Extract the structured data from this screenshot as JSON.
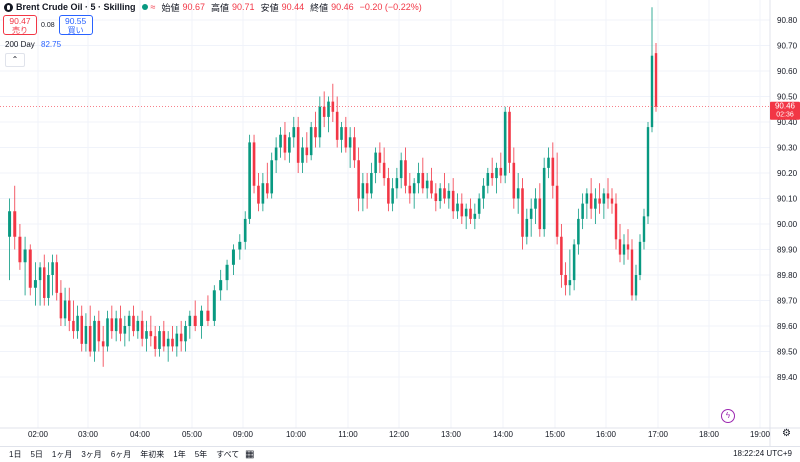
{
  "header": {
    "symbol": "Brent Crude Oil · 5 · Skilling",
    "pulse_icon": "≈",
    "open_label": "始値",
    "open_value": "90.67",
    "high_label": "高値",
    "high_value": "90.71",
    "low_label": "安値",
    "low_value": "90.44",
    "close_label": "終値",
    "close_value": "90.46",
    "change": "−0.20 (−0.22%)"
  },
  "trade": {
    "sell_price": "90.47",
    "sell_label": "売り",
    "spread": "0.08",
    "buy_price": "90.55",
    "buy_label": "買い"
  },
  "indicator": {
    "name": "200 Day",
    "value": "82.75"
  },
  "colors": {
    "up": "#089981",
    "down": "#f23645",
    "price_tag": "#f23645",
    "grid": "#f0f3fa"
  },
  "price_tag": {
    "price": "90.46",
    "countdown": "02:36"
  },
  "bottom": {
    "periods": [
      "1日",
      "5日",
      "1ヶ月",
      "3ヶ月",
      "6ヶ月",
      "年初来",
      "1年",
      "5年",
      "すべて"
    ],
    "clock": "18:22:24 UTC+9"
  },
  "chart_data": {
    "type": "candlestick",
    "y_ticks": [
      "90.80",
      "90.70",
      "90.60",
      "90.50",
      "90.40",
      "90.30",
      "90.20",
      "90.10",
      "90.00",
      "89.90",
      "89.80",
      "89.70",
      "89.60",
      "89.50",
      "89.40"
    ],
    "x_ticks": [
      "02:00",
      "03:00",
      "04:00",
      "05:00",
      "09:00",
      "10:00",
      "11:00",
      "12:00",
      "13:00",
      "14:00",
      "15:00",
      "16:00",
      "17:00",
      "18:00",
      "19:00"
    ],
    "ylim": [
      89.36,
      90.92
    ],
    "last_price": 90.46,
    "segments": [
      {
        "x_range": [
          "01:30",
          "02:00"
        ],
        "ohlc": [
          [
            89.95,
            90.1,
            89.78,
            90.05
          ],
          [
            90.05,
            90.15,
            89.9,
            89.95
          ],
          [
            89.95,
            90.0,
            89.82,
            89.85
          ],
          [
            89.85,
            89.95,
            89.72,
            89.9
          ],
          [
            89.9,
            89.92,
            89.72,
            89.75
          ],
          [
            89.75,
            89.85,
            89.68,
            89.78
          ]
        ]
      },
      {
        "x_range": [
          "02:00",
          "03:00"
        ],
        "ohlc": [
          [
            89.78,
            89.85,
            89.68,
            89.83
          ],
          [
            89.83,
            89.88,
            89.68,
            89.71
          ],
          [
            89.71,
            89.85,
            89.68,
            89.8
          ],
          [
            89.8,
            89.88,
            89.72,
            89.85
          ],
          [
            89.85,
            89.88,
            89.7,
            89.73
          ],
          [
            89.73,
            89.78,
            89.6,
            89.63
          ],
          [
            89.63,
            89.75,
            89.6,
            89.7
          ],
          [
            89.7,
            89.75,
            89.58,
            89.62
          ],
          [
            89.62,
            89.7,
            89.55,
            89.58
          ],
          [
            89.58,
            89.68,
            89.55,
            89.64
          ],
          [
            89.64,
            89.68,
            89.5,
            89.53
          ],
          [
            89.53,
            89.65,
            89.5,
            89.6
          ]
        ]
      },
      {
        "x_range": [
          "03:00",
          "04:00"
        ],
        "ohlc": [
          [
            89.6,
            89.68,
            89.48,
            89.5
          ],
          [
            89.5,
            89.64,
            89.46,
            89.62
          ],
          [
            89.62,
            89.66,
            89.5,
            89.54
          ],
          [
            89.54,
            89.6,
            89.44,
            89.52
          ],
          [
            89.52,
            89.66,
            89.5,
            89.63
          ],
          [
            89.63,
            89.68,
            89.55,
            89.58
          ],
          [
            89.58,
            89.66,
            89.54,
            89.63
          ],
          [
            89.63,
            89.68,
            89.54,
            89.57
          ],
          [
            89.57,
            89.64,
            89.52,
            89.6
          ],
          [
            89.6,
            89.66,
            89.54,
            89.64
          ],
          [
            89.64,
            89.68,
            89.56,
            89.58
          ],
          [
            89.58,
            89.64,
            89.55,
            89.62
          ]
        ]
      },
      {
        "x_range": [
          "04:00",
          "05:00"
        ],
        "ohlc": [
          [
            89.62,
            89.66,
            89.52,
            89.55
          ],
          [
            89.55,
            89.62,
            89.5,
            89.58
          ],
          [
            89.58,
            89.64,
            89.52,
            89.56
          ],
          [
            89.56,
            89.6,
            89.48,
            89.51
          ],
          [
            89.51,
            89.6,
            89.48,
            89.58
          ],
          [
            89.58,
            89.62,
            89.5,
            89.52
          ],
          [
            89.52,
            89.58,
            89.46,
            89.55
          ],
          [
            89.55,
            89.6,
            89.5,
            89.52
          ],
          [
            89.52,
            89.6,
            89.48,
            89.57
          ],
          [
            89.57,
            89.62,
            89.5,
            89.54
          ],
          [
            89.54,
            89.62,
            89.5,
            89.6
          ],
          [
            89.6,
            89.66,
            89.55,
            89.64
          ]
        ]
      },
      {
        "x_range": [
          "05:00",
          "09:00"
        ],
        "ohlc": [
          [
            89.64,
            89.7,
            89.58,
            89.6
          ],
          [
            89.6,
            89.68,
            89.55,
            89.66
          ],
          [
            89.66,
            89.72,
            89.6,
            89.62
          ],
          [
            89.62,
            89.76,
            89.6,
            89.74
          ],
          [
            89.74,
            89.82,
            89.7,
            89.78
          ],
          [
            89.78,
            89.86,
            89.74,
            89.84
          ],
          [
            89.84,
            89.92,
            89.8,
            89.9
          ],
          [
            89.9,
            89.96,
            89.86,
            89.93
          ]
        ]
      },
      {
        "x_range": [
          "09:00",
          "10:00"
        ],
        "ohlc": [
          [
            89.93,
            90.05,
            89.9,
            90.02
          ],
          [
            90.02,
            90.35,
            90.0,
            90.32
          ],
          [
            90.32,
            90.35,
            90.12,
            90.15
          ],
          [
            90.15,
            90.2,
            90.05,
            90.08
          ],
          [
            90.08,
            90.2,
            90.05,
            90.16
          ],
          [
            90.16,
            90.24,
            90.1,
            90.12
          ],
          [
            90.12,
            90.28,
            90.1,
            90.25
          ],
          [
            90.25,
            90.34,
            90.2,
            90.3
          ],
          [
            90.3,
            90.38,
            90.26,
            90.35
          ],
          [
            90.35,
            90.4,
            90.25,
            90.28
          ],
          [
            90.28,
            90.36,
            90.24,
            90.34
          ],
          [
            90.34,
            90.42,
            90.3,
            90.38
          ]
        ]
      },
      {
        "x_range": [
          "10:00",
          "11:00"
        ],
        "ohlc": [
          [
            90.38,
            90.42,
            90.2,
            90.24
          ],
          [
            90.24,
            90.34,
            90.2,
            90.3
          ],
          [
            90.3,
            90.36,
            90.24,
            90.27
          ],
          [
            90.27,
            90.4,
            90.25,
            90.38
          ],
          [
            90.38,
            90.44,
            90.3,
            90.34
          ],
          [
            90.34,
            90.5,
            90.3,
            90.46
          ],
          [
            90.46,
            90.52,
            90.38,
            90.42
          ],
          [
            90.42,
            90.5,
            90.36,
            90.48
          ],
          [
            90.48,
            90.55,
            90.4,
            90.44
          ],
          [
            90.44,
            90.5,
            90.3,
            90.33
          ],
          [
            90.33,
            90.4,
            90.28,
            90.38
          ],
          [
            90.38,
            90.42,
            90.28,
            90.3
          ]
        ]
      },
      {
        "x_range": [
          "11:00",
          "12:00"
        ],
        "ohlc": [
          [
            90.3,
            90.38,
            90.22,
            90.34
          ],
          [
            90.34,
            90.38,
            90.22,
            90.25
          ],
          [
            90.25,
            90.3,
            90.05,
            90.1
          ],
          [
            90.1,
            90.2,
            90.05,
            90.16
          ],
          [
            90.16,
            90.2,
            90.06,
            90.12
          ],
          [
            90.12,
            90.24,
            90.1,
            90.2
          ],
          [
            90.2,
            90.3,
            90.16,
            90.28
          ],
          [
            90.28,
            90.32,
            90.2,
            90.24
          ],
          [
            90.24,
            90.3,
            90.15,
            90.18
          ],
          [
            90.18,
            90.22,
            90.05,
            90.08
          ],
          [
            90.08,
            90.18,
            90.05,
            90.14
          ],
          [
            90.14,
            90.22,
            90.1,
            90.18
          ]
        ]
      },
      {
        "x_range": [
          "12:00",
          "13:00"
        ],
        "ohlc": [
          [
            90.18,
            90.28,
            90.14,
            90.25
          ],
          [
            90.25,
            90.3,
            90.12,
            90.15
          ],
          [
            90.15,
            90.2,
            90.08,
            90.12
          ],
          [
            90.12,
            90.18,
            90.06,
            90.16
          ],
          [
            90.16,
            90.24,
            90.12,
            90.2
          ],
          [
            90.2,
            90.26,
            90.12,
            90.14
          ],
          [
            90.14,
            90.2,
            90.1,
            90.17
          ],
          [
            90.17,
            90.22,
            90.1,
            90.12
          ],
          [
            90.12,
            90.16,
            90.05,
            90.09
          ],
          [
            90.09,
            90.16,
            90.06,
            90.14
          ],
          [
            90.14,
            90.2,
            90.08,
            90.1
          ],
          [
            90.1,
            90.16,
            90.06,
            90.13
          ]
        ]
      },
      {
        "x_range": [
          "13:00",
          "14:00"
        ],
        "ohlc": [
          [
            90.13,
            90.18,
            90.02,
            90.05
          ],
          [
            90.05,
            90.12,
            90.02,
            90.08
          ],
          [
            90.08,
            90.12,
            90.0,
            90.03
          ],
          [
            90.03,
            90.08,
            89.98,
            90.06
          ],
          [
            90.06,
            90.1,
            90.0,
            90.02
          ],
          [
            90.02,
            90.08,
            89.98,
            90.04
          ],
          [
            90.04,
            90.12,
            90.02,
            90.1
          ],
          [
            90.1,
            90.18,
            90.06,
            90.15
          ],
          [
            90.15,
            90.22,
            90.12,
            90.2
          ],
          [
            90.2,
            90.26,
            90.15,
            90.18
          ],
          [
            90.18,
            90.24,
            90.12,
            90.22
          ],
          [
            90.22,
            90.28,
            90.16,
            90.19
          ]
        ]
      },
      {
        "x_range": [
          "14:00",
          "15:00"
        ],
        "ohlc": [
          [
            90.19,
            90.46,
            90.16,
            90.44
          ],
          [
            90.44,
            90.46,
            90.2,
            90.24
          ],
          [
            90.24,
            90.3,
            90.06,
            90.1
          ],
          [
            90.1,
            90.2,
            90.04,
            90.14
          ],
          [
            90.14,
            90.18,
            89.9,
            89.95
          ],
          [
            89.95,
            90.06,
            89.92,
            90.02
          ],
          [
            90.02,
            90.1,
            89.95,
            90.06
          ],
          [
            90.06,
            90.14,
            90.0,
            90.1
          ],
          [
            90.1,
            90.16,
            89.95,
            89.98
          ],
          [
            89.98,
            90.26,
            89.95,
            90.22
          ],
          [
            90.22,
            90.3,
            90.18,
            90.26
          ],
          [
            90.26,
            90.32,
            90.1,
            90.15
          ]
        ]
      },
      {
        "x_range": [
          "15:00",
          "16:00"
        ],
        "ohlc": [
          [
            90.15,
            90.28,
            89.92,
            89.95
          ],
          [
            89.95,
            90.0,
            89.75,
            89.8
          ],
          [
            89.8,
            89.85,
            89.72,
            89.76
          ],
          [
            89.76,
            89.9,
            89.72,
            89.78
          ],
          [
            89.78,
            89.94,
            89.74,
            89.92
          ],
          [
            89.92,
            90.06,
            89.88,
            90.02
          ],
          [
            90.02,
            90.12,
            89.98,
            90.08
          ],
          [
            90.08,
            90.14,
            90.02,
            90.12
          ],
          [
            90.12,
            90.18,
            90.02,
            90.06
          ],
          [
            90.06,
            90.14,
            90.0,
            90.1
          ],
          [
            90.1,
            90.16,
            90.04,
            90.08
          ],
          [
            90.08,
            90.14,
            90.02,
            90.12
          ]
        ]
      },
      {
        "x_range": [
          "16:00",
          "17:00"
        ],
        "ohlc": [
          [
            90.12,
            90.18,
            90.06,
            90.1
          ],
          [
            90.1,
            90.14,
            90.04,
            90.08
          ],
          [
            90.08,
            90.12,
            89.9,
            89.94
          ],
          [
            89.94,
            90.0,
            89.85,
            89.88
          ],
          [
            89.88,
            89.96,
            89.84,
            89.92
          ],
          [
            89.92,
            89.98,
            89.86,
            89.9
          ],
          [
            89.9,
            89.94,
            89.7,
            89.72
          ],
          [
            89.72,
            89.84,
            89.7,
            89.8
          ],
          [
            89.8,
            89.96,
            89.78,
            89.93
          ],
          [
            89.93,
            90.06,
            89.9,
            90.03
          ],
          [
            90.03,
            90.4,
            90.0,
            90.38
          ],
          [
            90.38,
            90.85,
            90.36,
            90.66
          ],
          [
            90.67,
            90.71,
            90.44,
            90.46
          ]
        ]
      }
    ]
  }
}
